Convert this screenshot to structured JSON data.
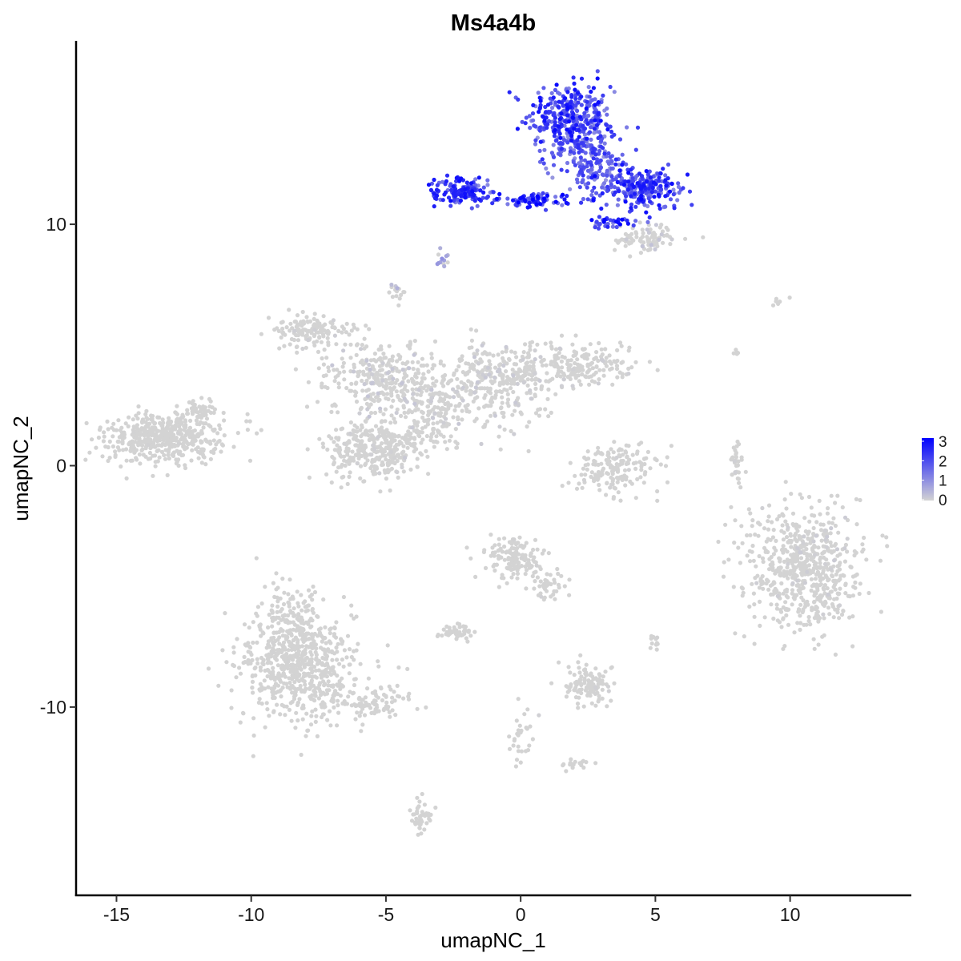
{
  "chart_data": {
    "type": "scatter",
    "title": "Ms4a4b",
    "xlabel": "umapNC_1",
    "ylabel": "umapNC_2",
    "xlim": [
      -16.5,
      14.5
    ],
    "ylim": [
      -17.8,
      17.6
    ],
    "x_ticks": [
      -15,
      -10,
      -5,
      0,
      5,
      10
    ],
    "x_tick_labels": [
      "-15",
      "-10",
      "-5",
      "0",
      "5",
      "10"
    ],
    "y_ticks": [
      10,
      0,
      -10
    ],
    "y_tick_labels": [
      "10",
      "0",
      "-10"
    ],
    "grid": false,
    "legend": {
      "placement": "right",
      "type": "colorbar",
      "labels": [
        "3",
        "2",
        "1",
        "0"
      ],
      "values": [
        3,
        2,
        1,
        0
      ],
      "low_color": "#d3d3d3",
      "high_color": "#0000ff"
    },
    "clusters": [
      {
        "cx": 1.8,
        "cy": 14.5,
        "rx": 1.4,
        "ry": 1.2,
        "n": 300,
        "expr": 1.7
      },
      {
        "cx": 2.2,
        "cy": 13.2,
        "rx": 1.3,
        "ry": 1.1,
        "n": 160,
        "expr": 1.4
      },
      {
        "cx": 4.6,
        "cy": 11.5,
        "rx": 1.4,
        "ry": 0.8,
        "n": 230,
        "expr": 1.7
      },
      {
        "cx": 3.0,
        "cy": 12.0,
        "rx": 1.0,
        "ry": 0.9,
        "n": 80,
        "expr": 1.3
      },
      {
        "cx": -2.2,
        "cy": 11.4,
        "rx": 0.9,
        "ry": 0.5,
        "n": 150,
        "expr": 1.7
      },
      {
        "cx": 0.3,
        "cy": 11.0,
        "rx": 1.6,
        "ry": 0.25,
        "n": 90,
        "expr": 1.9
      },
      {
        "cx": 3.3,
        "cy": 10.1,
        "rx": 0.9,
        "ry": 0.25,
        "n": 35,
        "expr": 1.8
      },
      {
        "cx": 4.7,
        "cy": 9.4,
        "rx": 1.0,
        "ry": 0.5,
        "n": 90,
        "expr": 0.15
      },
      {
        "cx": -2.9,
        "cy": 8.6,
        "rx": 0.2,
        "ry": 0.4,
        "n": 12,
        "expr": 0.6
      },
      {
        "cx": -4.6,
        "cy": 7.3,
        "rx": 0.25,
        "ry": 0.4,
        "n": 15,
        "expr": 0.3
      },
      {
        "cx": -13.2,
        "cy": 1.2,
        "rx": 2.0,
        "ry": 1.0,
        "n": 500,
        "expr": 0.02
      },
      {
        "cx": -12.0,
        "cy": 2.3,
        "rx": 0.6,
        "ry": 0.4,
        "n": 40,
        "expr": 0.02
      },
      {
        "cx": -7.8,
        "cy": 5.6,
        "rx": 1.3,
        "ry": 0.6,
        "n": 150,
        "expr": 0.05
      },
      {
        "cx": -5.0,
        "cy": 3.5,
        "rx": 2.0,
        "ry": 1.3,
        "n": 330,
        "expr": 0.12
      },
      {
        "cx": -1.0,
        "cy": 3.5,
        "rx": 2.3,
        "ry": 1.5,
        "n": 360,
        "expr": 0.1
      },
      {
        "cx": 2.2,
        "cy": 4.2,
        "rx": 1.8,
        "ry": 0.8,
        "n": 190,
        "expr": 0.06
      },
      {
        "cx": -5.4,
        "cy": 0.7,
        "rx": 1.7,
        "ry": 1.1,
        "n": 360,
        "expr": 0.04
      },
      {
        "cx": -3.2,
        "cy": 2.0,
        "rx": 1.0,
        "ry": 1.2,
        "n": 120,
        "expr": 0.08
      },
      {
        "cx": 3.6,
        "cy": -0.1,
        "rx": 1.4,
        "ry": 0.9,
        "n": 170,
        "expr": 0.03
      },
      {
        "cx": 10.5,
        "cy": -4.3,
        "rx": 1.9,
        "ry": 2.4,
        "n": 650,
        "expr": 0.07
      },
      {
        "cx": 8.0,
        "cy": 0.1,
        "rx": 0.25,
        "ry": 0.9,
        "n": 30,
        "expr": 0.05
      },
      {
        "cx": -0.3,
        "cy": -3.8,
        "rx": 0.9,
        "ry": 0.8,
        "n": 140,
        "expr": 0.02
      },
      {
        "cx": 0.9,
        "cy": -4.9,
        "rx": 0.7,
        "ry": 0.6,
        "n": 45,
        "expr": 0.03
      },
      {
        "cx": -8.2,
        "cy": -8.2,
        "rx": 2.1,
        "ry": 2.1,
        "n": 650,
        "expr": 0.01
      },
      {
        "cx": -8.4,
        "cy": -6.2,
        "rx": 1.0,
        "ry": 1.0,
        "n": 110,
        "expr": 0.01
      },
      {
        "cx": -5.5,
        "cy": -9.8,
        "rx": 1.3,
        "ry": 0.5,
        "n": 80,
        "expr": 0.01
      },
      {
        "cx": -2.4,
        "cy": -6.9,
        "rx": 0.6,
        "ry": 0.3,
        "n": 45,
        "expr": 0.01
      },
      {
        "cx": 2.5,
        "cy": -9.1,
        "rx": 0.8,
        "ry": 0.7,
        "n": 120,
        "expr": 0.03
      },
      {
        "cx": 0.1,
        "cy": -11.2,
        "rx": 0.4,
        "ry": 0.9,
        "n": 30,
        "expr": 0.03
      },
      {
        "cx": 2.0,
        "cy": -12.4,
        "rx": 0.5,
        "ry": 0.25,
        "n": 20,
        "expr": 0.01
      },
      {
        "cx": -3.7,
        "cy": -14.5,
        "rx": 0.35,
        "ry": 0.7,
        "n": 45,
        "expr": 0.03
      },
      {
        "cx": 5.0,
        "cy": -7.3,
        "rx": 0.2,
        "ry": 0.35,
        "n": 12,
        "expr": 0.01
      },
      {
        "cx": 8.0,
        "cy": 4.7,
        "rx": 0.1,
        "ry": 0.2,
        "n": 5,
        "expr": 0.2
      },
      {
        "cx": 9.6,
        "cy": 6.8,
        "rx": 0.4,
        "ry": 0.2,
        "n": 6,
        "expr": 0.02
      }
    ]
  }
}
